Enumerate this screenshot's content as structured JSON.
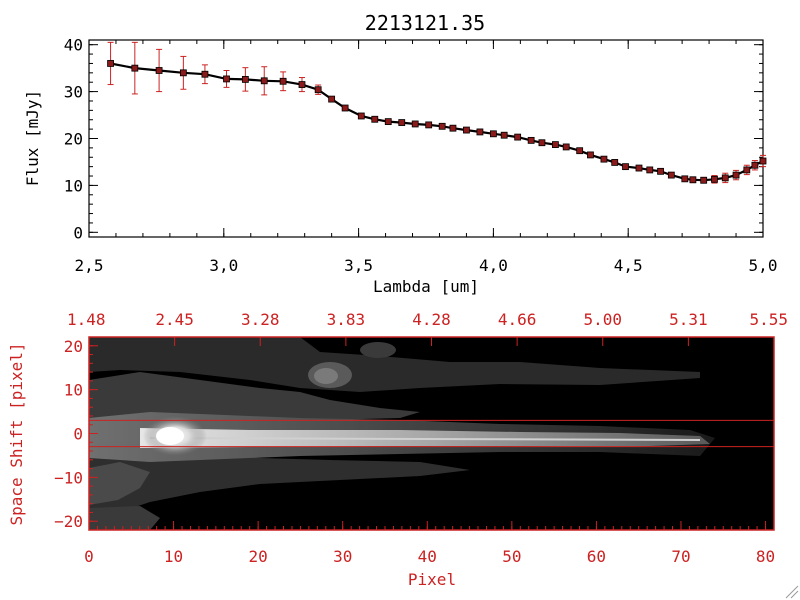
{
  "chart_data": [
    {
      "type": "line",
      "title": "2213121.35",
      "xlabel": "Lambda [um]",
      "ylabel": "Flux [mJy]",
      "xlim": [
        2.5,
        5.0
      ],
      "ylim": [
        -1,
        41
      ],
      "x_ticks": [
        2.5,
        3.0,
        3.5,
        4.0,
        4.5,
        5.0
      ],
      "x_tick_labels": [
        "2,5",
        "3,0",
        "3,5",
        "4,0",
        "4,5",
        "5,0"
      ],
      "y_ticks": [
        0,
        10,
        20,
        30,
        40
      ],
      "y_tick_labels": [
        "0",
        "10",
        "20",
        "30",
        "40"
      ],
      "grid": false,
      "line_color": "#000000",
      "marker_color": "#8b1a1a",
      "errorbar_color": "#cc2222",
      "series": [
        {
          "x": [
            2.58,
            2.67,
            2.76,
            2.85,
            2.93,
            3.01,
            3.08,
            3.15,
            3.22,
            3.29,
            3.35,
            3.4,
            3.45,
            3.51,
            3.56,
            3.61,
            3.66,
            3.71,
            3.76,
            3.81,
            3.85,
            3.9,
            3.95,
            4.0,
            4.04,
            4.09,
            4.14,
            4.18,
            4.23,
            4.27,
            4.32,
            4.36,
            4.41,
            4.45,
            4.49,
            4.54,
            4.58,
            4.62,
            4.66,
            4.71,
            4.74,
            4.78,
            4.82,
            4.86,
            4.9,
            4.94,
            4.97,
            5.0
          ],
          "y": [
            36,
            35,
            34.5,
            34,
            33.7,
            32.7,
            32.6,
            32.3,
            32.2,
            31.5,
            30.4,
            28.4,
            26.5,
            24.8,
            24.1,
            23.6,
            23.4,
            23.1,
            22.9,
            22.6,
            22.2,
            21.8,
            21.4,
            21.0,
            20.7,
            20.3,
            19.6,
            19.1,
            18.7,
            18.2,
            17.4,
            16.5,
            15.6,
            14.9,
            14.0,
            13.7,
            13.3,
            13.0,
            12.2,
            11.4,
            11.2,
            11.1,
            11.3,
            11.6,
            12.2,
            13.3,
            14.3,
            15.2
          ],
          "yerr": [
            4.5,
            5.5,
            4.5,
            3.5,
            2.0,
            1.8,
            2.5,
            3.0,
            2.0,
            1.5,
            1.0,
            0.5,
            0.5,
            0.4,
            0.4,
            0.4,
            0.3,
            0.3,
            0.3,
            0.3,
            0.3,
            0.3,
            0.3,
            0.3,
            0.3,
            0.3,
            0.3,
            0.3,
            0.3,
            0.3,
            0.3,
            0.3,
            0.3,
            0.3,
            0.3,
            0.3,
            0.3,
            0.3,
            0.4,
            0.5,
            0.6,
            0.6,
            0.8,
            1.0,
            1.0,
            1.0,
            1.0,
            1.2
          ]
        }
      ]
    },
    {
      "type": "heatmap",
      "xlabel": "Pixel",
      "ylabel": "Space Shift [pixel]",
      "xlim": [
        0,
        81
      ],
      "ylim": [
        -22,
        22
      ],
      "x_ticks": [
        0,
        10,
        20,
        30,
        40,
        50,
        60,
        70,
        80
      ],
      "x_tick_labels": [
        "0",
        "10",
        "20",
        "30",
        "40",
        "50",
        "60",
        "70",
        "80"
      ],
      "y_ticks": [
        -20,
        -10,
        0,
        10,
        20
      ],
      "y_tick_labels": [
        "−20",
        "−10",
        "0",
        "10",
        "20"
      ],
      "top_tick_labels": [
        "1.48",
        "2.45",
        "3.28",
        "3.83",
        "4.28",
        "4.66",
        "5.00",
        "5.31",
        "5.55"
      ],
      "extraction_aperture": [
        -3,
        3
      ],
      "axis_color": "#cc2222",
      "colormap": "grayscale"
    }
  ]
}
